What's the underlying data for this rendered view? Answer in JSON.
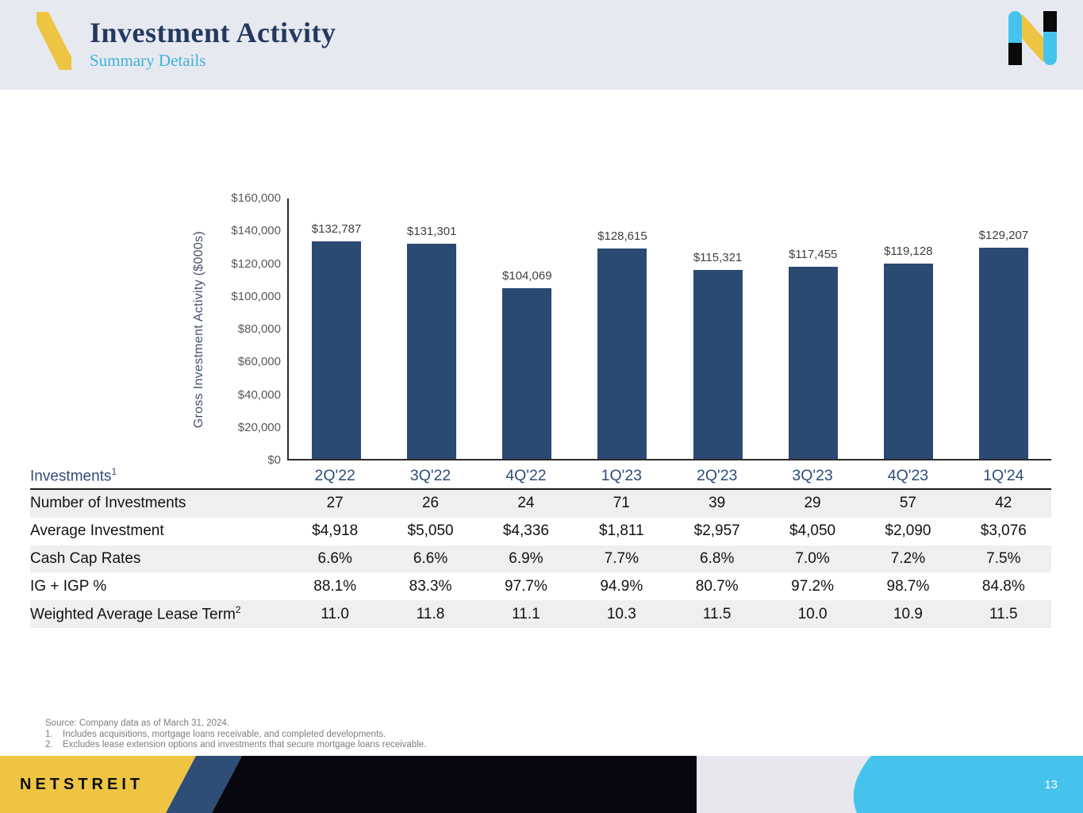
{
  "header": {
    "title": "Investment Activity",
    "subtitle": "Summary Details"
  },
  "chart_data": {
    "type": "bar",
    "title": "",
    "categories": [
      "2Q'22",
      "3Q'22",
      "4Q'22",
      "1Q'23",
      "2Q'23",
      "3Q'23",
      "4Q'23",
      "1Q'24"
    ],
    "values": [
      132787,
      131301,
      104069,
      128615,
      115321,
      117455,
      119128,
      129207
    ],
    "data_labels": [
      "$132,787",
      "$131,301",
      "$104,069",
      "$128,615",
      "$115,321",
      "$117,455",
      "$119,128",
      "$129,207"
    ],
    "xlabel": "",
    "ylabel": "Gross Investment Activity ($000s)",
    "ylim": [
      0,
      160000
    ],
    "ytick_labels": [
      "$0",
      "$20,000",
      "$40,000",
      "$60,000",
      "$80,000",
      "$100,000",
      "$120,000",
      "$140,000",
      "$160,000"
    ],
    "grid": false,
    "legend": false,
    "bar_color": "#2a4a72"
  },
  "table": {
    "title": {
      "label": "Investments",
      "sup": "1"
    },
    "rows": [
      {
        "label": "Number of Investments",
        "sup": "",
        "values": [
          "27",
          "26",
          "24",
          "71",
          "39",
          "29",
          "57",
          "42"
        ]
      },
      {
        "label": "Average Investment",
        "sup": "",
        "values": [
          "$4,918",
          "$5,050",
          "$4,336",
          "$1,811",
          "$2,957",
          "$4,050",
          "$2,090",
          "$3,076"
        ]
      },
      {
        "label": "Cash Cap Rates",
        "sup": "",
        "values": [
          "6.6%",
          "6.6%",
          "6.9%",
          "7.7%",
          "6.8%",
          "7.0%",
          "7.2%",
          "7.5%"
        ]
      },
      {
        "label": "IG + IGP %",
        "sup": "",
        "values": [
          "88.1%",
          "83.3%",
          "97.7%",
          "94.9%",
          "80.7%",
          "97.2%",
          "98.7%",
          "84.8%"
        ]
      },
      {
        "label": "Weighted Average Lease Term",
        "sup": "2",
        "values": [
          "11.0",
          "11.8",
          "11.1",
          "10.3",
          "11.5",
          "10.0",
          "10.9",
          "11.5"
        ]
      }
    ]
  },
  "footnotes": {
    "source": "Source: Company data as of March 31, 2024.",
    "notes": [
      {
        "num": "1.",
        "text": "Includes acquisitions, mortgage loans receivable, and completed developments."
      },
      {
        "num": "2.",
        "text": "Excludes lease extension options and investments that secure mortgage loans receivable."
      }
    ]
  },
  "footer": {
    "brand": "NETSTREIT",
    "page_number": "13"
  },
  "colors": {
    "accent_yellow": "#eec543",
    "accent_cyan": "#45c3ec",
    "brand_navy": "#2a4a72",
    "header_bg": "#e7e9f1",
    "title_navy": "#23395f",
    "subtitle_blue": "#41b2da",
    "footer_gray": "#e6e8ee",
    "footer_black": "#07080f"
  }
}
